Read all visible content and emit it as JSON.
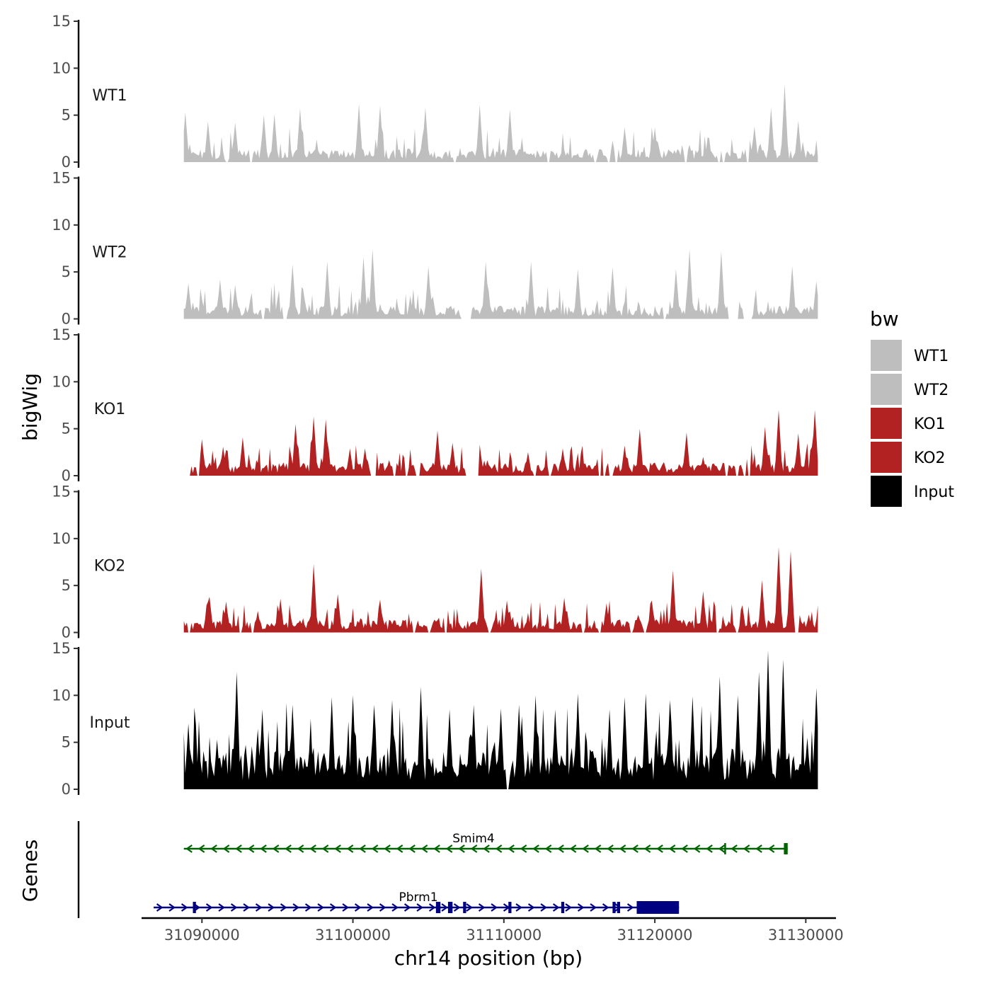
{
  "chart_data": {
    "type": "area",
    "title": "",
    "xlabel": "chr14 position (bp)",
    "ylabel": "bigWig",
    "genes_label": "Genes",
    "xlim": [
      31086000,
      31132000
    ],
    "xticks": [
      31090000,
      31100000,
      31110000,
      31120000,
      31130000
    ],
    "xtick_labels": [
      "31090000",
      "31100000",
      "31110000",
      "31120000",
      "31130000"
    ],
    "ylim": [
      0,
      15
    ],
    "yticks": [
      0,
      5,
      10,
      15
    ],
    "ytick_labels": [
      "0",
      "5",
      "10",
      "15"
    ],
    "data_range": [
      31088800,
      31130800
    ],
    "legend": {
      "title": "bw",
      "position": "right",
      "entries": [
        {
          "label": "WT1",
          "color": "#bebebe"
        },
        {
          "label": "WT2",
          "color": "#bebebe"
        },
        {
          "label": "KO1",
          "color": "#b22222"
        },
        {
          "label": "KO2",
          "color": "#b22222"
        },
        {
          "label": "Input",
          "color": "#000000"
        }
      ]
    },
    "tracks": [
      {
        "name": "WT1",
        "color": "#bebebe",
        "peaks": [
          [
            31088900,
            5.3
          ],
          [
            31090400,
            4.3
          ],
          [
            31092200,
            4.2
          ],
          [
            31094100,
            5.0
          ],
          [
            31094800,
            5.1
          ],
          [
            31096500,
            5.7
          ],
          [
            31100400,
            6.2
          ],
          [
            31101800,
            6.0
          ],
          [
            31104800,
            5.8
          ],
          [
            31108400,
            6.1
          ],
          [
            31110400,
            5.6
          ],
          [
            31118000,
            3.7
          ],
          [
            31120000,
            3.7
          ],
          [
            31126600,
            3.8
          ],
          [
            31127700,
            5.8
          ],
          [
            31128600,
            8.3
          ],
          [
            31129500,
            4.4
          ]
        ],
        "zero_regions": [
          [
            31091600,
            31091700
          ],
          [
            31093200,
            31093300
          ],
          [
            31106700,
            31106800
          ],
          [
            31112900,
            31113000
          ],
          [
            31116000,
            31116100
          ],
          [
            31116900,
            31117000
          ],
          [
            31117400,
            31117500
          ],
          [
            31122000,
            31122100
          ],
          [
            31124200,
            31124300
          ],
          [
            31124500,
            31124600
          ],
          [
            31126100,
            31126200
          ]
        ]
      },
      {
        "name": "WT2",
        "color": "#bebebe",
        "peaks": [
          [
            31089100,
            3.8
          ],
          [
            31091200,
            4.2
          ],
          [
            31092200,
            3.6
          ],
          [
            31096000,
            5.8
          ],
          [
            31098300,
            6.1
          ],
          [
            31100700,
            6.6
          ],
          [
            31101300,
            7.4
          ],
          [
            31105000,
            5.6
          ],
          [
            31108800,
            6.1
          ],
          [
            31111800,
            6.1
          ],
          [
            31114900,
            5.3
          ],
          [
            31117200,
            5.5
          ],
          [
            31121400,
            5.3
          ],
          [
            31122300,
            7.4
          ],
          [
            31124400,
            7.2
          ],
          [
            31129100,
            5.6
          ],
          [
            31130700,
            4.0
          ]
        ],
        "zero_regions": [
          [
            31094000,
            31094100
          ],
          [
            31095400,
            31095600
          ],
          [
            31107200,
            31107800
          ],
          [
            31120600,
            31120700
          ],
          [
            31124900,
            31125500
          ],
          [
            31125900,
            31126000
          ],
          [
            31126100,
            31126400
          ]
        ]
      },
      {
        "name": "KO1",
        "color": "#b22222",
        "peaks": [
          [
            31090000,
            3.9
          ],
          [
            31091400,
            3.1
          ],
          [
            31092700,
            4.1
          ],
          [
            31095400,
            1.4
          ],
          [
            31096200,
            5.5
          ],
          [
            31097400,
            6.3
          ],
          [
            31098200,
            6.0
          ],
          [
            31099800,
            2.9
          ],
          [
            31100800,
            2.9
          ],
          [
            31103400,
            1.9
          ],
          [
            31105600,
            4.8
          ],
          [
            31106600,
            3.5
          ],
          [
            31108400,
            3.3
          ],
          [
            31111600,
            2.5
          ],
          [
            31113900,
            2.9
          ],
          [
            31116200,
            1.8
          ],
          [
            31118000,
            3.2
          ],
          [
            31119000,
            5.0
          ],
          [
            31122100,
            4.6
          ],
          [
            31123200,
            2.0
          ],
          [
            31126000,
            2.9
          ],
          [
            31127300,
            5.2
          ],
          [
            31128200,
            7.0
          ],
          [
            31129500,
            4.5
          ],
          [
            31130600,
            7.0
          ]
        ],
        "zero_regions": [
          [
            31088800,
            31089200
          ],
          [
            31089700,
            31089800
          ],
          [
            31101200,
            31101500
          ],
          [
            31102700,
            31102800
          ],
          [
            31103500,
            31103600
          ],
          [
            31104200,
            31104400
          ],
          [
            31107500,
            31107600
          ],
          [
            31107700,
            31108300
          ],
          [
            31112000,
            31112100
          ],
          [
            31113000,
            31113100
          ],
          [
            31116300,
            31116400
          ],
          [
            31116600,
            31116700
          ],
          [
            31117000,
            31117200
          ],
          [
            31124700,
            31124800
          ],
          [
            31125400,
            31125500
          ],
          [
            31125900,
            31126000
          ],
          [
            31126200,
            31126300
          ]
        ]
      },
      {
        "name": "KO2",
        "color": "#b22222",
        "peaks": [
          [
            31090500,
            3.8
          ],
          [
            31091600,
            3.3
          ],
          [
            31092500,
            3.0
          ],
          [
            31093700,
            2.3
          ],
          [
            31095200,
            3.6
          ],
          [
            31097400,
            7.3
          ],
          [
            31099000,
            4.1
          ],
          [
            31101800,
            3.5
          ],
          [
            31106200,
            3.8
          ],
          [
            31108500,
            6.8
          ],
          [
            31110200,
            3.4
          ],
          [
            31114000,
            3.7
          ],
          [
            31116800,
            3.1
          ],
          [
            31119800,
            3.4
          ],
          [
            31121200,
            6.6
          ],
          [
            31123200,
            4.4
          ],
          [
            31125800,
            2.9
          ],
          [
            31127100,
            5.6
          ],
          [
            31128200,
            9.1
          ],
          [
            31129000,
            8.7
          ],
          [
            31130200,
            1.9
          ],
          [
            31130800,
            2.3
          ]
        ],
        "zero_regions": [
          [
            31089100,
            31089200
          ],
          [
            31092500,
            31092600
          ],
          [
            31093300,
            31093400
          ],
          [
            31104000,
            31104100
          ],
          [
            31105000,
            31105100
          ],
          [
            31106100,
            31106200
          ],
          [
            31109000,
            31109100
          ],
          [
            31115200,
            31115300
          ],
          [
            31116300,
            31116400
          ],
          [
            31118400,
            31118500
          ],
          [
            31119300,
            31119400
          ],
          [
            31124100,
            31124200
          ],
          [
            31125400,
            31125500
          ],
          [
            31129300,
            31129500
          ]
        ]
      },
      {
        "name": "Input",
        "color": "#000000",
        "peaks": [
          [
            31089100,
            7.0
          ],
          [
            31091000,
            5.3
          ],
          [
            31092300,
            12.5
          ],
          [
            31094000,
            8.5
          ],
          [
            31096000,
            9.0
          ],
          [
            31098600,
            9.8
          ],
          [
            31100000,
            10.0
          ],
          [
            31101400,
            9.0
          ],
          [
            31102600,
            9.5
          ],
          [
            31104500,
            10.9
          ],
          [
            31106400,
            8.5
          ],
          [
            31108000,
            9.0
          ],
          [
            31109800,
            8.6
          ],
          [
            31111000,
            9.0
          ],
          [
            31112100,
            10.0
          ],
          [
            31113400,
            8.5
          ],
          [
            31114900,
            10.2
          ],
          [
            31117000,
            8.5
          ],
          [
            31118000,
            9.8
          ],
          [
            31119400,
            10.2
          ],
          [
            31121000,
            9.5
          ],
          [
            31122500,
            9.9
          ],
          [
            31124300,
            12.0
          ],
          [
            31125500,
            10.0
          ],
          [
            31126900,
            12.5
          ],
          [
            31127500,
            14.8
          ],
          [
            31128500,
            13.8
          ],
          [
            31130100,
            5.5
          ],
          [
            31130700,
            10.8
          ]
        ],
        "zero_regions": [
          [
            31110200,
            31110300
          ]
        ]
      }
    ],
    "genes": [
      {
        "name": "Smim4",
        "strand": "-",
        "color": "#006400",
        "start": 31088800,
        "end": 31128800,
        "exons": [
          [
            31124600,
            31124700
          ],
          [
            31128550,
            31128800
          ]
        ]
      },
      {
        "name": "Pbrm1",
        "strand": "+",
        "color": "#000080",
        "start": 31086800,
        "end": 31121600,
        "exons": [
          [
            31089400,
            31089600
          ],
          [
            31105500,
            31105800
          ],
          [
            31106300,
            31106600
          ],
          [
            31107300,
            31107500
          ],
          [
            31110300,
            31110500
          ],
          [
            31113800,
            31114000
          ],
          [
            31117200,
            31117400
          ],
          [
            31117500,
            31117700
          ],
          [
            31118800,
            31121600
          ]
        ]
      }
    ]
  }
}
